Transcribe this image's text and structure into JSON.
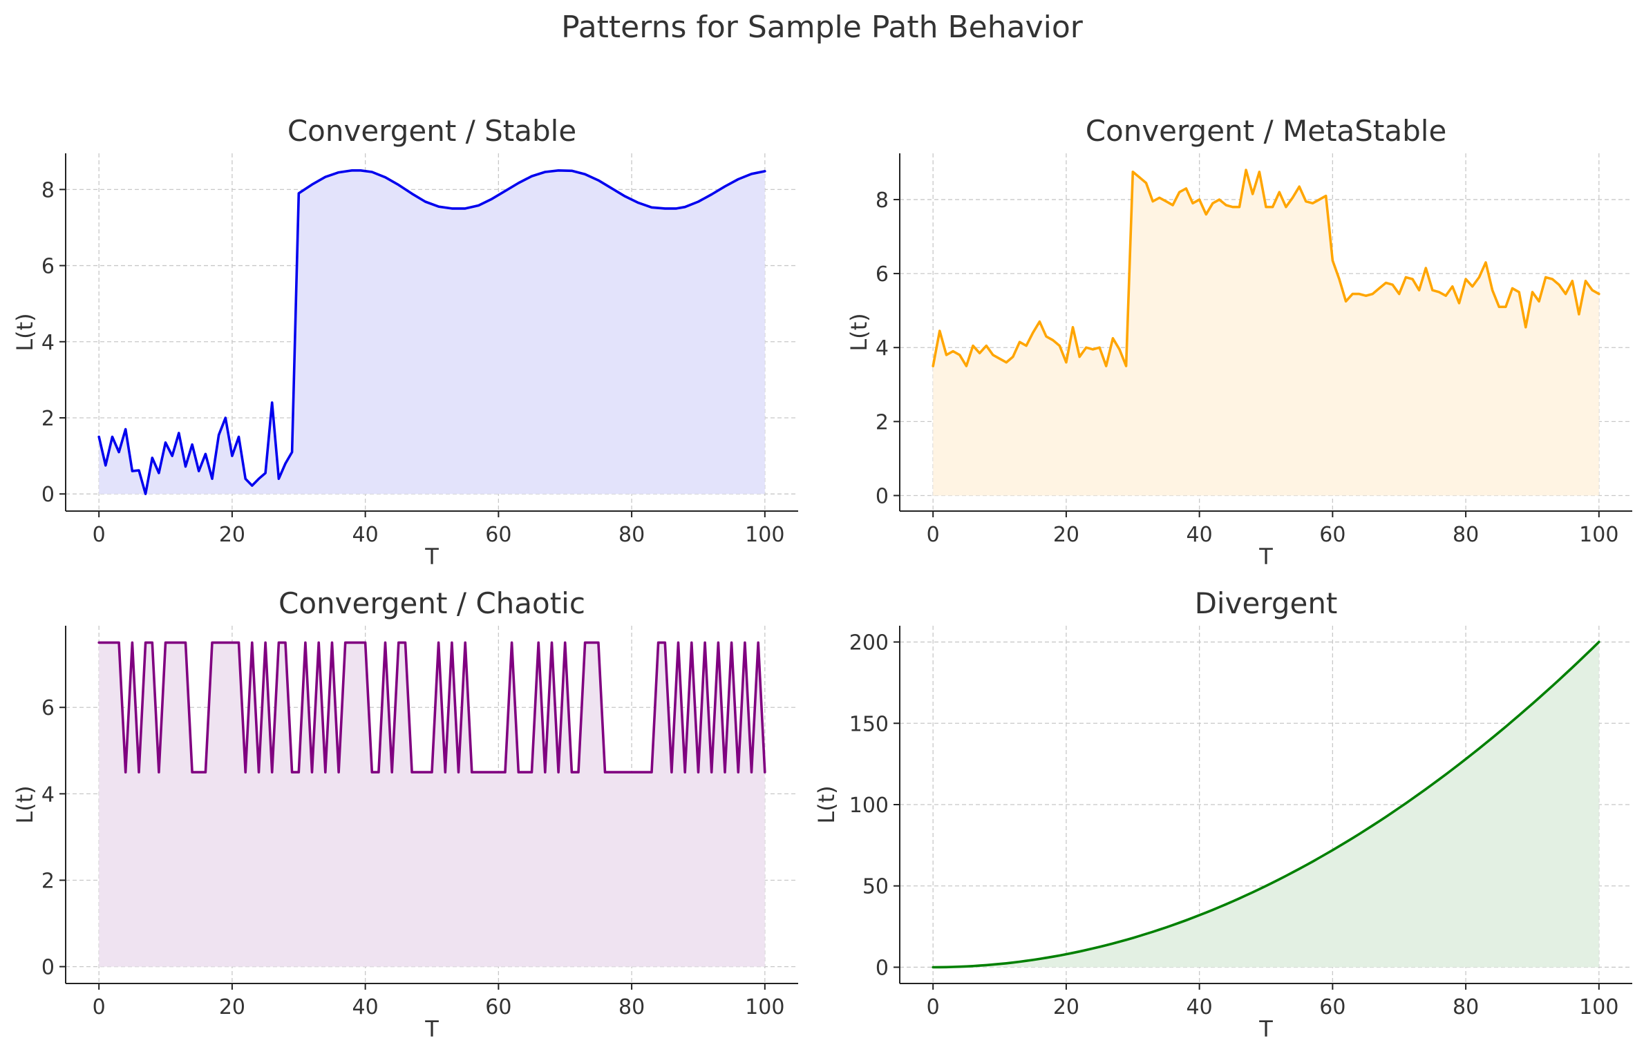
{
  "suptitle": "Patterns for Sample Path Behavior",
  "chart_data": [
    {
      "type": "area",
      "title": "Convergent / Stable",
      "xlabel": "T",
      "ylabel": "L(t)",
      "xlim": [
        -5,
        105
      ],
      "ylim": [
        -0.45,
        8.95
      ],
      "xticks": [
        0,
        20,
        40,
        60,
        80,
        100
      ],
      "yticks": [
        0,
        2,
        4,
        6,
        8
      ],
      "grid": true,
      "color": "#0000ee",
      "fill": "#e3e3fb",
      "x": [
        0,
        1,
        2,
        3,
        4,
        5,
        6,
        7,
        8,
        9,
        10,
        11,
        12,
        13,
        14,
        15,
        16,
        17,
        18,
        19,
        20,
        21,
        22,
        23,
        24,
        25,
        26,
        27,
        28,
        29,
        30,
        32,
        34,
        36,
        38,
        39.3,
        41,
        43,
        45,
        47,
        49,
        51,
        53,
        55,
        57,
        59,
        61,
        63,
        65,
        67,
        69,
        71,
        73,
        75,
        77,
        79,
        81,
        83,
        85,
        86.7,
        88,
        90,
        92,
        94,
        96,
        98,
        100
      ],
      "y": [
        1.5,
        0.75,
        1.5,
        1.1,
        1.7,
        0.6,
        0.62,
        0.0,
        0.95,
        0.55,
        1.35,
        1.0,
        1.6,
        0.72,
        1.3,
        0.6,
        1.05,
        0.4,
        1.55,
        2.0,
        1.0,
        1.5,
        0.4,
        0.22,
        0.4,
        0.55,
        2.4,
        0.4,
        0.8,
        1.1,
        7.9,
        8.13,
        8.33,
        8.45,
        8.5,
        8.5,
        8.46,
        8.32,
        8.12,
        7.89,
        7.68,
        7.55,
        7.5,
        7.5,
        7.58,
        7.75,
        7.96,
        8.17,
        8.35,
        8.46,
        8.5,
        8.49,
        8.4,
        8.24,
        8.03,
        7.82,
        7.65,
        7.53,
        7.5,
        7.5,
        7.54,
        7.68,
        7.87,
        8.08,
        8.27,
        8.41,
        8.48
      ]
    },
    {
      "type": "area",
      "title": "Convergent / MetaStable",
      "xlabel": "T",
      "ylabel": "L(t)",
      "xlim": [
        -5,
        105
      ],
      "ylim": [
        -0.42,
        9.25
      ],
      "xticks": [
        0,
        20,
        40,
        60,
        80,
        100
      ],
      "yticks": [
        0,
        2,
        4,
        6,
        8
      ],
      "grid": true,
      "color": "#ffa500",
      "fill": "#fff4e3",
      "x": [
        0,
        1,
        2,
        3,
        4,
        5,
        6,
        7,
        8,
        9,
        10,
        11,
        12,
        13,
        14,
        15,
        16,
        17,
        18,
        19,
        20,
        21,
        22,
        23,
        24,
        25,
        26,
        27,
        28,
        29,
        30,
        31,
        32,
        33,
        34,
        35,
        36,
        37,
        38,
        39,
        40,
        41,
        42,
        43,
        44,
        45,
        46,
        47,
        48,
        49,
        50,
        51,
        52,
        53,
        54,
        55,
        56,
        57,
        58,
        59,
        60,
        61,
        62,
        63,
        64,
        65,
        66,
        67,
        68,
        69,
        70,
        71,
        72,
        73,
        74,
        75,
        76,
        77,
        78,
        79,
        80,
        81,
        82,
        83,
        84,
        85,
        86,
        87,
        88,
        89,
        90,
        91,
        92,
        93,
        94,
        95,
        96,
        97,
        98,
        99,
        100
      ],
      "y": [
        3.5,
        4.45,
        3.8,
        3.9,
        3.8,
        3.5,
        4.05,
        3.85,
        4.05,
        3.8,
        3.7,
        3.6,
        3.75,
        4.15,
        4.05,
        4.4,
        4.7,
        4.3,
        4.2,
        4.05,
        3.6,
        4.55,
        3.75,
        4.0,
        3.95,
        4.0,
        3.5,
        4.25,
        3.95,
        3.5,
        8.75,
        8.6,
        8.45,
        7.95,
        8.05,
        7.95,
        7.85,
        8.2,
        8.3,
        7.9,
        8.0,
        7.6,
        7.9,
        8.0,
        7.85,
        7.8,
        7.8,
        8.8,
        8.15,
        8.75,
        7.8,
        7.8,
        8.2,
        7.8,
        8.05,
        8.35,
        7.95,
        7.9,
        8.0,
        8.1,
        6.35,
        5.85,
        5.25,
        5.45,
        5.45,
        5.4,
        5.45,
        5.6,
        5.75,
        5.7,
        5.45,
        5.9,
        5.85,
        5.55,
        6.15,
        5.55,
        5.5,
        5.4,
        5.65,
        5.2,
        5.85,
        5.65,
        5.9,
        6.3,
        5.55,
        5.1,
        5.1,
        5.6,
        5.5,
        4.55,
        5.5,
        5.25,
        5.9,
        5.85,
        5.7,
        5.45,
        5.8,
        4.9,
        5.8,
        5.55,
        5.45
      ]
    },
    {
      "type": "area",
      "title": "Convergent / Chaotic",
      "xlabel": "T",
      "ylabel": "L(t)",
      "xlim": [
        -5,
        105
      ],
      "ylim": [
        -0.39,
        7.89
      ],
      "xticks": [
        0,
        20,
        40,
        60,
        80,
        100
      ],
      "yticks": [
        0,
        2,
        4,
        6
      ],
      "grid": true,
      "color": "#800080",
      "fill": "#efe3f1",
      "x": [
        0,
        1,
        2,
        3,
        4,
        5,
        6,
        7,
        8,
        9,
        10,
        11,
        12,
        13,
        14,
        15,
        16,
        17,
        18,
        19,
        20,
        21,
        22,
        23,
        24,
        25,
        26,
        27,
        28,
        29,
        30,
        31,
        32,
        33,
        34,
        35,
        36,
        37,
        38,
        39,
        40,
        41,
        42,
        43,
        44,
        45,
        46,
        47,
        48,
        49,
        50,
        51,
        52,
        53,
        54,
        55,
        56,
        57,
        58,
        59,
        60,
        61,
        62,
        63,
        64,
        65,
        66,
        67,
        68,
        69,
        70,
        71,
        72,
        73,
        74,
        75,
        76,
        77,
        78,
        79,
        80,
        81,
        82,
        83,
        84,
        85,
        86,
        87,
        88,
        89,
        90,
        91,
        92,
        93,
        94,
        95,
        96,
        97,
        98,
        99,
        100
      ],
      "y": [
        7.5,
        7.5,
        7.5,
        7.5,
        4.5,
        7.5,
        4.5,
        7.5,
        7.5,
        4.5,
        7.5,
        7.5,
        7.5,
        7.5,
        4.5,
        4.5,
        4.5,
        7.5,
        7.5,
        7.5,
        7.5,
        7.5,
        4.5,
        7.5,
        4.5,
        7.5,
        4.5,
        7.5,
        7.5,
        4.5,
        4.5,
        7.5,
        4.5,
        7.5,
        4.5,
        7.5,
        4.5,
        7.5,
        7.5,
        7.5,
        7.5,
        4.5,
        4.5,
        7.5,
        4.5,
        7.5,
        7.5,
        4.5,
        4.5,
        4.5,
        4.5,
        7.5,
        4.5,
        7.5,
        4.5,
        7.5,
        4.5,
        4.5,
        4.5,
        4.5,
        4.5,
        4.5,
        7.5,
        4.5,
        4.5,
        4.5,
        7.5,
        4.5,
        7.5,
        4.5,
        7.5,
        4.5,
        4.5,
        7.5,
        7.5,
        7.5,
        4.5,
        4.5,
        4.5,
        4.5,
        4.5,
        4.5,
        4.5,
        4.5,
        7.5,
        7.5,
        4.5,
        7.5,
        4.5,
        7.5,
        4.5,
        7.5,
        4.5,
        7.5,
        4.5,
        7.5,
        4.5,
        7.5,
        4.5,
        7.5,
        4.5
      ]
    },
    {
      "type": "area",
      "title": "Divergent",
      "xlabel": "T",
      "ylabel": "L(t)",
      "xlim": [
        -5,
        105
      ],
      "ylim": [
        -10,
        210
      ],
      "xticks": [
        0,
        20,
        40,
        60,
        80,
        100
      ],
      "yticks": [
        0,
        50,
        100,
        150,
        200
      ],
      "grid": true,
      "color": "#008000",
      "fill": "#e3f0e3",
      "function": "0.02*t^2",
      "x": [
        0,
        10,
        20,
        30,
        40,
        50,
        60,
        70,
        80,
        90,
        100
      ],
      "y": [
        0,
        2,
        8,
        18,
        32,
        50,
        72,
        98,
        128,
        162,
        200
      ]
    }
  ]
}
